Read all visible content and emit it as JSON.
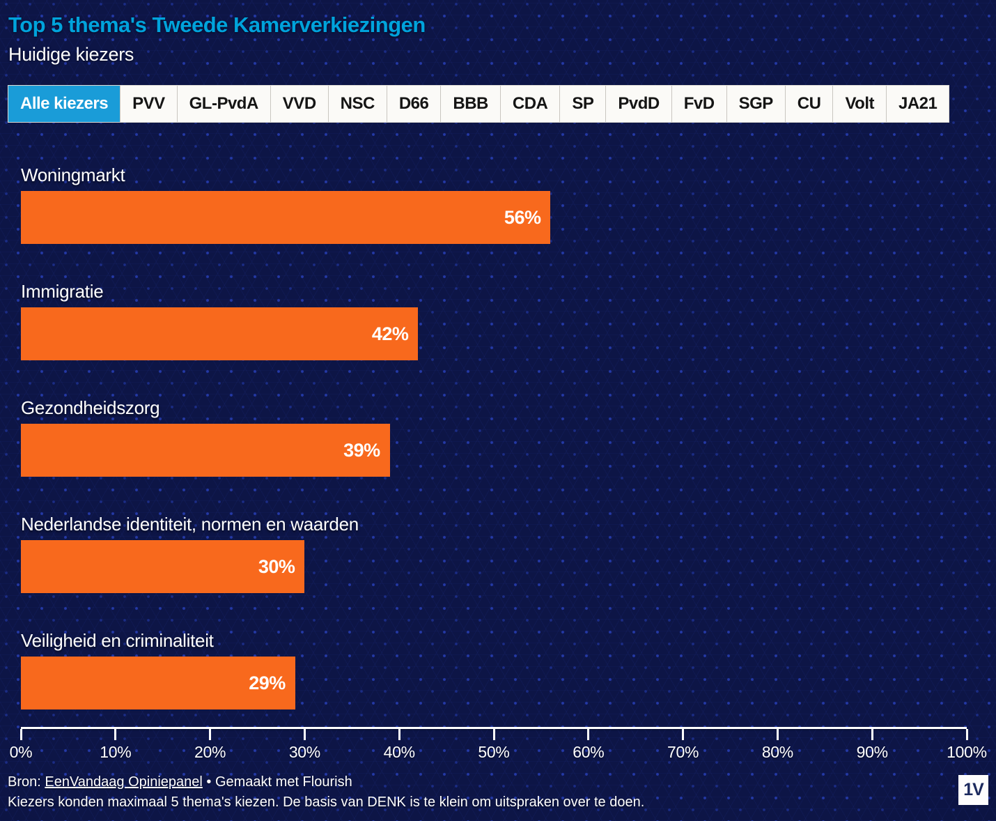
{
  "header": {
    "title": "Top 5 thema's Tweede Kamerverkiezingen",
    "subtitle": "Huidige kiezers"
  },
  "tabs": [
    {
      "label": "Alle kiezers",
      "selected": true
    },
    {
      "label": "PVV",
      "selected": false
    },
    {
      "label": "GL-PvdA",
      "selected": false
    },
    {
      "label": "VVD",
      "selected": false
    },
    {
      "label": "NSC",
      "selected": false
    },
    {
      "label": "D66",
      "selected": false
    },
    {
      "label": "BBB",
      "selected": false
    },
    {
      "label": "CDA",
      "selected": false
    },
    {
      "label": "SP",
      "selected": false
    },
    {
      "label": "PvdD",
      "selected": false
    },
    {
      "label": "FvD",
      "selected": false
    },
    {
      "label": "SGP",
      "selected": false
    },
    {
      "label": "CU",
      "selected": false
    },
    {
      "label": "Volt",
      "selected": false
    },
    {
      "label": "JA21",
      "selected": false
    }
  ],
  "chart_data": {
    "type": "bar",
    "orientation": "horizontal",
    "title": "Top 5 thema's Tweede Kamerverkiezingen",
    "subtitle": "Huidige kiezers",
    "categories": [
      "Woningmarkt",
      "Immigratie",
      "Gezondheidszorg",
      "Nederlandse identiteit, normen en waarden",
      "Veiligheid en criminaliteit"
    ],
    "values": [
      56,
      42,
      39,
      30,
      29
    ],
    "value_labels": [
      "56%",
      "42%",
      "39%",
      "30%",
      "29%"
    ],
    "xlim": [
      0,
      100
    ],
    "x_tick_labels": [
      "0%",
      "10%",
      "20%",
      "30%",
      "40%",
      "50%",
      "60%",
      "70%",
      "80%",
      "90%",
      "100%"
    ],
    "bar_color": "#f8691d",
    "grid": false,
    "legend": false
  },
  "footer": {
    "bron_label": "Bron: ",
    "source_link": "EenVandaag Opiniepanel",
    "made_with": " • Gemaakt met Flourish",
    "note": "Kiezers konden maximaal 5 thema's kiezen. De basis van DENK is te klein om uitspraken over te doen.",
    "logo_text": "1V"
  },
  "colors": {
    "background": "#0d1546",
    "title_blue": "#00a3dc",
    "tab_selected": "#1a9cd8",
    "bar_orange": "#f8691d",
    "text": "#ffffff"
  }
}
